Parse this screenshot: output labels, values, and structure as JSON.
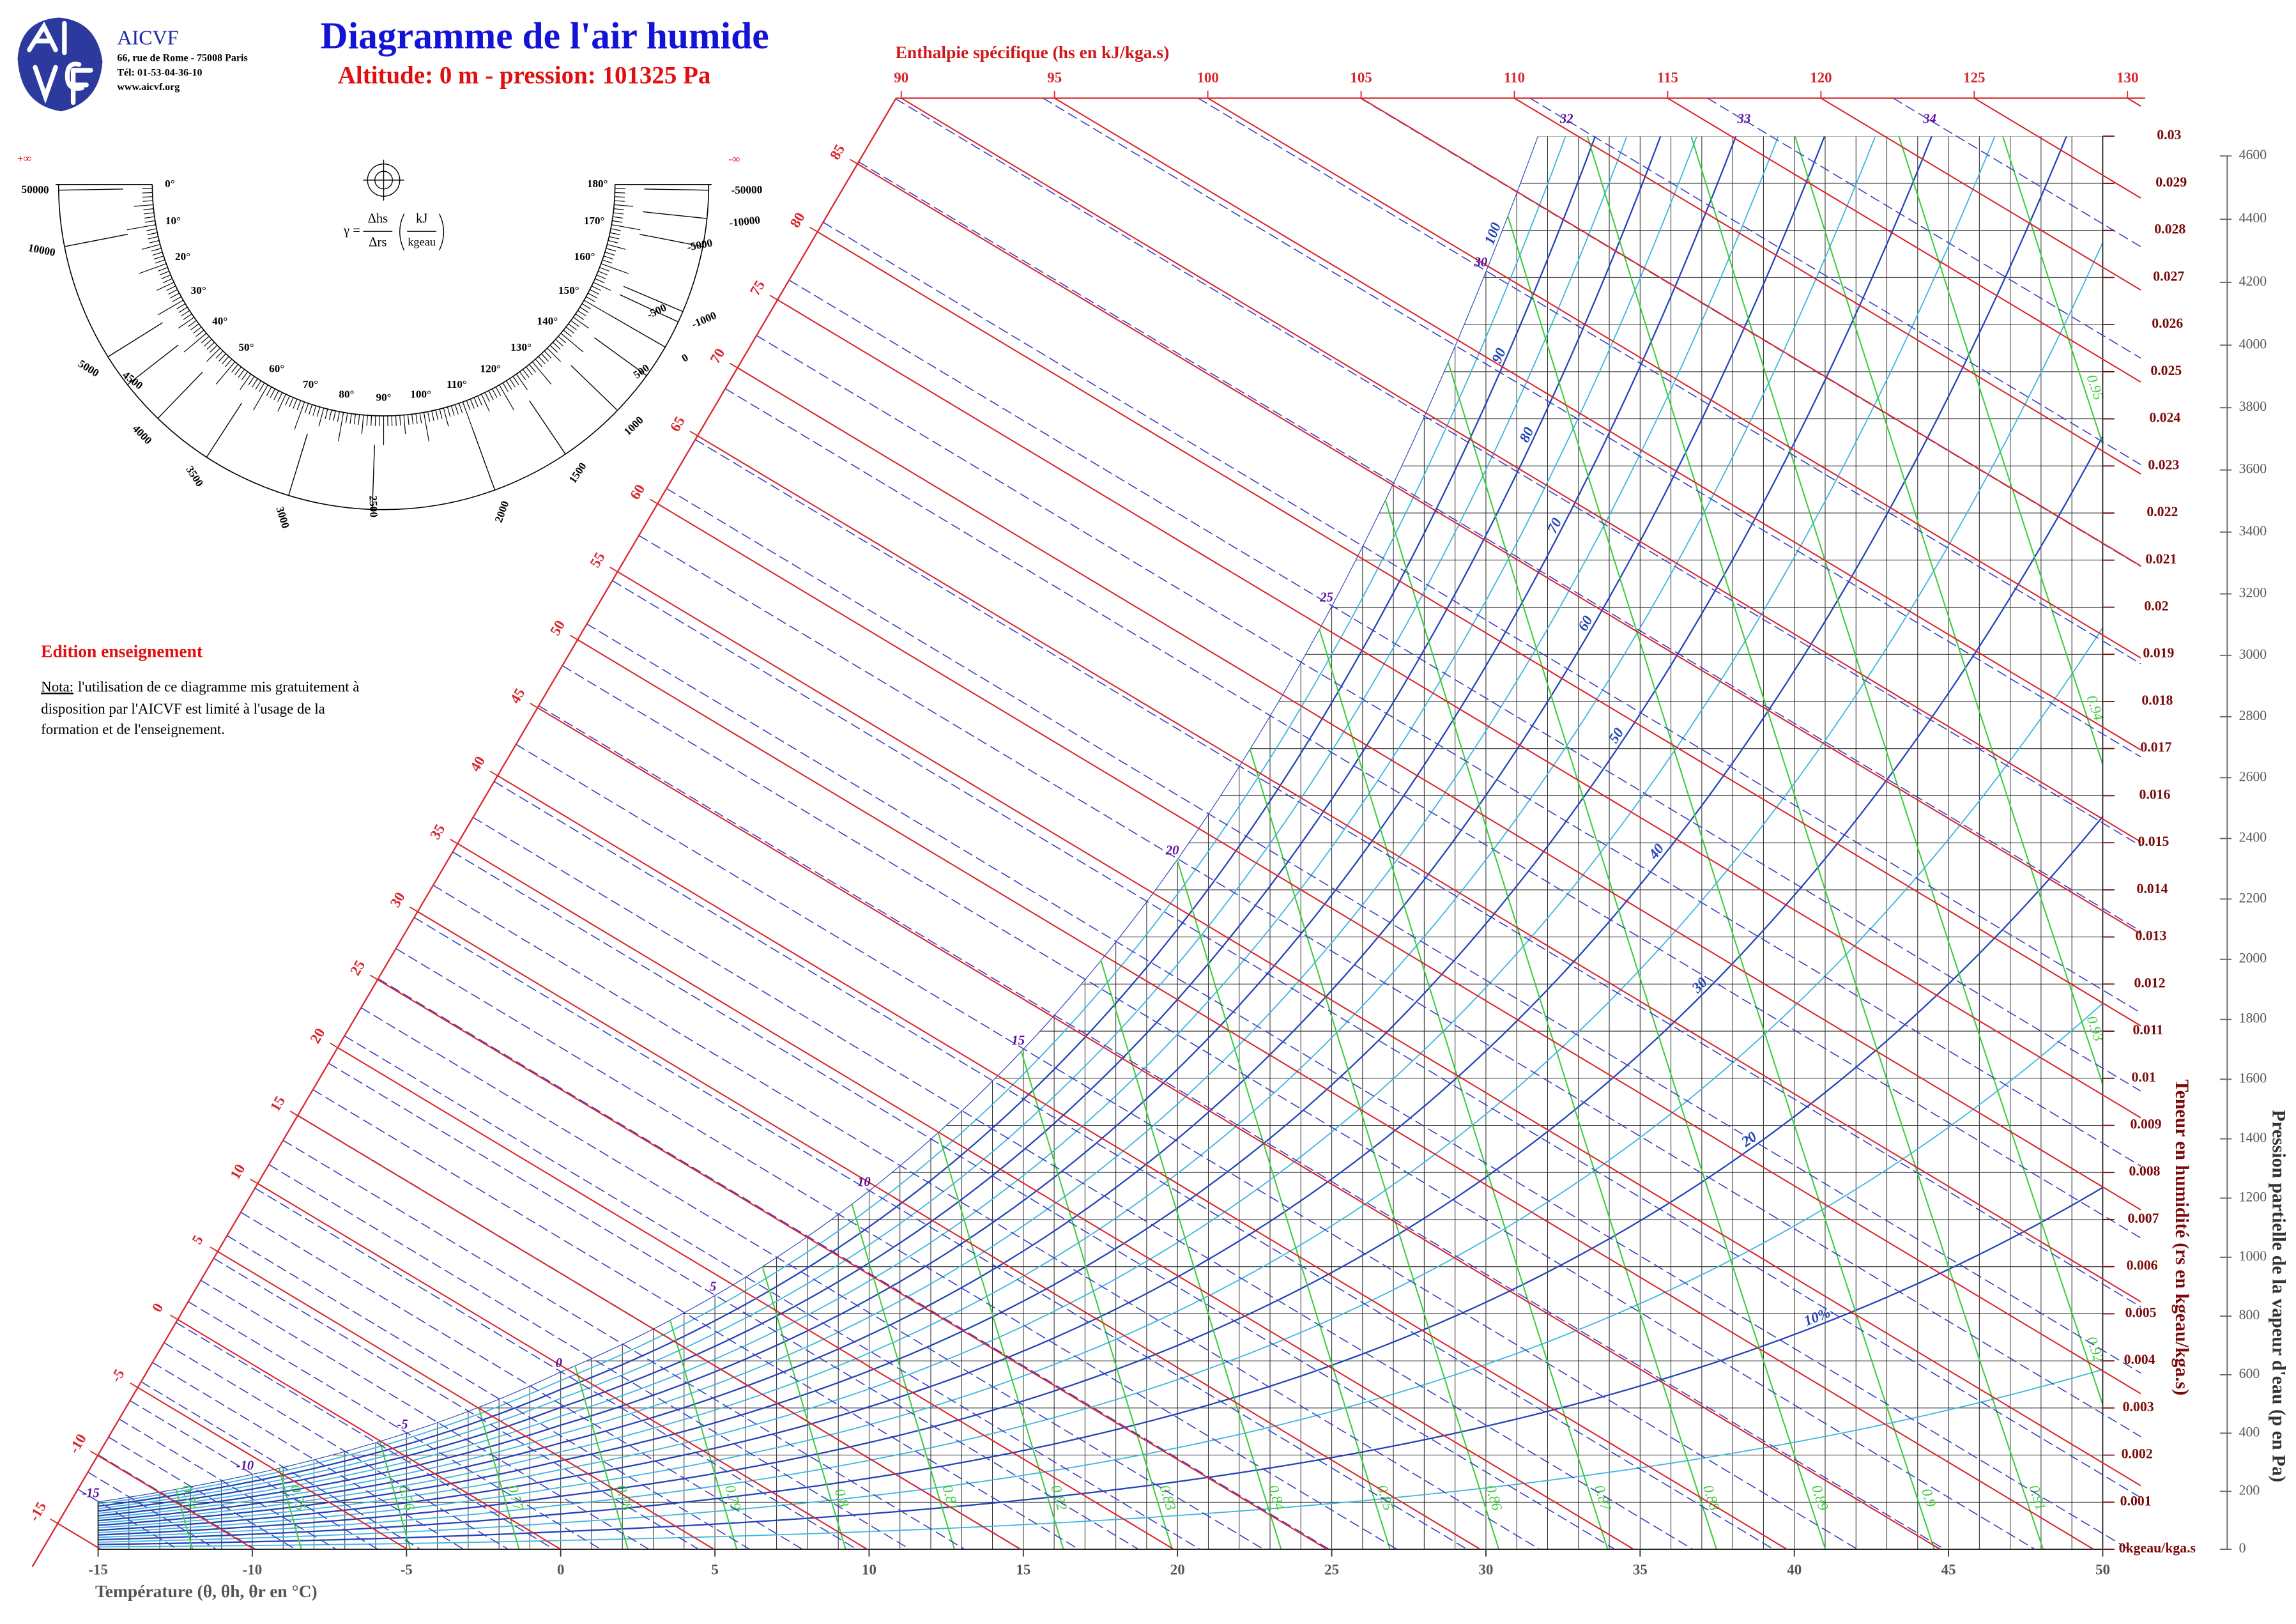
{
  "header": {
    "org": "AICVF",
    "address": "66, rue de Rome - 75008 Paris",
    "phone": "Tél: 01-53-04-36-10",
    "web": "www.aicvf.org"
  },
  "notes": {
    "edition": "Edition enseignement",
    "nota_label": "Nota:",
    "nota_lines": [
      "l'utilisation de ce diagramme mis gratuitement à",
      "disposition par l'AICVF est limité à l'usage de la",
      "formation et de l'enseignement."
    ]
  },
  "gauge": {
    "formula": {
      "symbol": "γ =",
      "numerator": "Δhs",
      "denominator": "Δrs",
      "unit_numerator": "kJ",
      "unit_denominator": "kgeau"
    },
    "angle_labels": [
      "0°",
      "10°",
      "20°",
      "30°",
      "40°",
      "50°",
      "60°",
      "70°",
      "80°",
      "90°",
      "100°",
      "110°",
      "120°",
      "130°",
      "140°",
      "150°",
      "160°",
      "170°",
      "180°"
    ],
    "scale_labels": [
      "+∞",
      "50000",
      "10000",
      "5000",
      "4500",
      "4000",
      "3500",
      "3000",
      "2500",
      "2000",
      "1500",
      "1000",
      "500",
      "0",
      "-500",
      "-1000",
      "-5000",
      "-10000",
      "-50000",
      "-∞"
    ]
  },
  "chart_data": {
    "type": "psychrometric",
    "title": "Diagramme de l'air humide",
    "subtitle": "Altitude: 0 m - pression: 101325 Pa",
    "pressure": 101325,
    "x_label": "Température (θ, θh, θr en °C)",
    "y_label": "Teneur en humidité (rs en kgeau/kga.s)",
    "y2_label": "Pression partielle de la vapeur d'eau (p en Pa)",
    "enthalpy_label": "Enthalpie spécifique (hs en kJ/kga.s)",
    "xlim": [
      -15,
      50
    ],
    "xticks": [
      -15,
      -10,
      -5,
      0,
      5,
      10,
      15,
      20,
      25,
      30,
      35,
      40,
      45,
      50
    ],
    "xgrid": [
      -15,
      -14,
      -13,
      -12,
      -11,
      -10,
      -9,
      -8,
      -7,
      -6,
      -5,
      -4,
      -3,
      -2,
      -1,
      0,
      1,
      2,
      3,
      4,
      5,
      6,
      7,
      8,
      9,
      10,
      11,
      12,
      13,
      14,
      15,
      16,
      17,
      18,
      19,
      20,
      21,
      22,
      23,
      24,
      25,
      26,
      27,
      28,
      29,
      30,
      31,
      32,
      33,
      34,
      35,
      36,
      37,
      38,
      39,
      40,
      41,
      42,
      43,
      44,
      45,
      46,
      47,
      48,
      49,
      50
    ],
    "ylim": [
      0,
      0.03
    ],
    "yticks": [
      {
        "value": 0,
        "label": "0kgeau/kga.s"
      },
      0.001,
      0.002,
      0.003,
      0.004,
      0.005,
      0.006,
      0.007,
      0.008,
      0.009,
      0.01,
      0.011,
      0.012,
      0.013,
      0.014,
      0.015,
      0.016,
      0.017,
      0.018,
      0.019,
      0.02,
      0.021,
      0.022,
      0.023,
      0.024,
      0.025,
      0.026,
      0.027,
      0.028,
      0.029,
      0.03
    ],
    "y2ticks": [
      0,
      200,
      400,
      600,
      800,
      1000,
      1200,
      1400,
      1600,
      1800,
      2000,
      2200,
      2400,
      2600,
      2800,
      3000,
      3200,
      3400,
      3600,
      3800,
      4000,
      4200,
      4400,
      4600
    ],
    "enthalpy_ticks_diagonal": [
      -15,
      -10,
      -5,
      0,
      5,
      10,
      15,
      20,
      25,
      30,
      35,
      40,
      45,
      50,
      55,
      60,
      65,
      70,
      75,
      80,
      85
    ],
    "enthalpy_ticks_top": [
      90,
      95,
      100,
      105,
      110,
      115,
      120,
      125,
      130
    ],
    "relative_humidity": [
      {
        "value": 10,
        "label": "10%"
      },
      20,
      30,
      40,
      50,
      60,
      70,
      80,
      90,
      100
    ],
    "relative_humidity_minor": [
      5,
      15,
      25,
      35,
      45,
      55,
      65,
      75,
      85,
      95
    ],
    "wet_bulb": [
      -15,
      -14,
      -13,
      -12,
      -11,
      -10,
      -9,
      -8,
      -7,
      -6,
      -5,
      -4,
      -3,
      -2,
      -1,
      0,
      1,
      2,
      3,
      4,
      5,
      6,
      7,
      8,
      9,
      10,
      11,
      12,
      13,
      14,
      15,
      16,
      17,
      18,
      19,
      20,
      21,
      22,
      23,
      24,
      25,
      26,
      27,
      28,
      29,
      30,
      31,
      32,
      33,
      34
    ],
    "wet_bulb_labels": [
      -15,
      -10,
      -5,
      0,
      5,
      10,
      15,
      20,
      25,
      30,
      32,
      33,
      34
    ],
    "specific_volume": [
      0.74,
      0.75,
      0.76,
      0.77,
      0.78,
      0.79,
      0.8,
      0.81,
      0.82,
      0.83,
      0.84,
      0.85,
      0.86,
      0.87,
      0.88,
      0.89,
      0.9,
      0.91,
      0.92,
      0.93,
      0.94,
      0.95
    ],
    "grid": true,
    "colors": {
      "enthalpy": "#d8262c",
      "relative_humidity": "#2343b8",
      "relative_humidity_minor": "#3fb6e0",
      "wet_bulb": "#3a3fc4",
      "wet_bulb_label": "#5a109e",
      "specific_volume": "#3dcc3d",
      "grid": "#2b2b2b",
      "humidity_axis": "#7a0a0a",
      "pressure_axis": "#555555",
      "temperature_axis": "#555555"
    }
  }
}
